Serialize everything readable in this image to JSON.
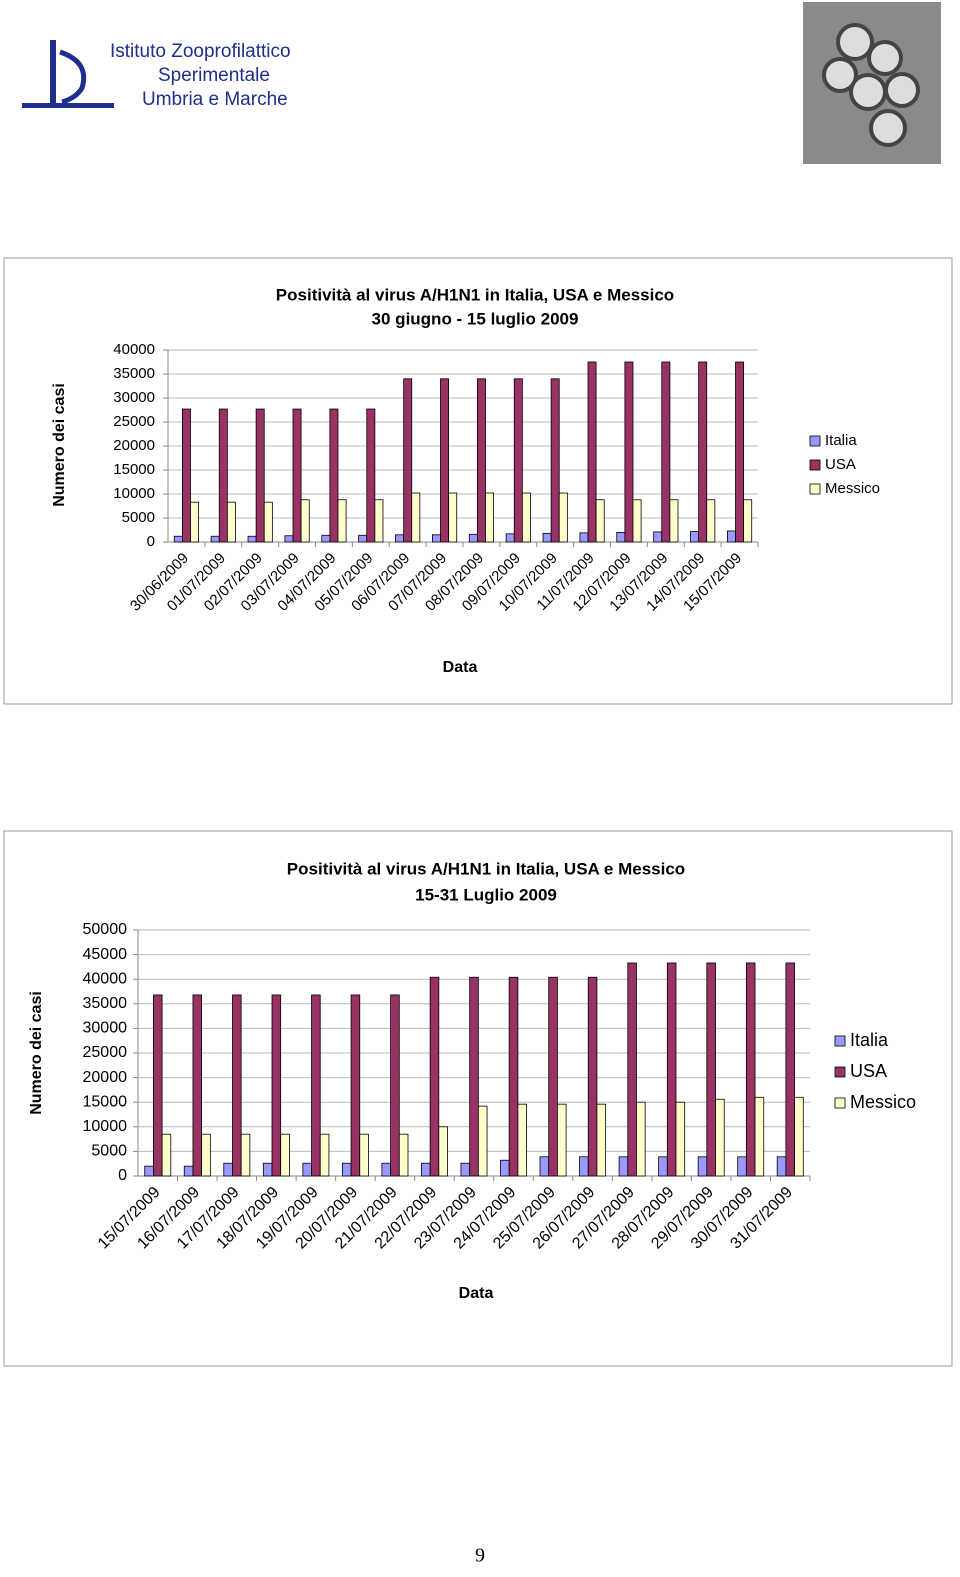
{
  "header": {
    "logo_lines": [
      "Istituto Zooprofilattico",
      "Sperimentale",
      "Umbria e Marche"
    ]
  },
  "chart_data": [
    {
      "type": "bar",
      "title": "Positività al virus A/H1N1 in Italia, USA e Messico",
      "subtitle": "30 giugno - 15 luglio 2009",
      "y_label": "Numero dei casi",
      "x_label": "Data",
      "categories": [
        "30/06/2009",
        "01/07/2009",
        "02/07/2009",
        "03/07/2009",
        "04/07/2009",
        "05/07/2009",
        "06/07/2009",
        "07/07/2009",
        "08/07/2009",
        "09/07/2009",
        "10/07/2009",
        "11/07/2009",
        "12/07/2009",
        "13/07/2009",
        "14/07/2009",
        "15/07/2009"
      ],
      "series": [
        {
          "name": "Italia",
          "color": "#9999ff",
          "values": [
            1200,
            1200,
            1200,
            1300,
            1400,
            1400,
            1500,
            1500,
            1600,
            1700,
            1800,
            1900,
            2000,
            2100,
            2200,
            2300
          ]
        },
        {
          "name": "USA",
          "color": "#993366",
          "values": [
            27700,
            27700,
            27700,
            27700,
            27700,
            27700,
            34000,
            34000,
            34000,
            34000,
            34000,
            37500,
            37500,
            37500,
            37500,
            37500
          ]
        },
        {
          "name": "Messico",
          "color": "#ffffcc",
          "values": [
            8300,
            8300,
            8300,
            8800,
            8800,
            8800,
            10200,
            10200,
            10200,
            10200,
            10200,
            8800,
            8800,
            8800,
            8800,
            8800
          ]
        }
      ],
      "ylim": [
        0,
        40000
      ],
      "yticks": [
        0,
        5000,
        10000,
        15000,
        20000,
        25000,
        30000,
        35000,
        40000
      ],
      "grid": true,
      "legend": "right"
    },
    {
      "type": "bar",
      "title": "Positività al virus A/H1N1 in Italia, USA e Messico",
      "subtitle": "15-31 Luglio 2009",
      "y_label": "Numero dei casi",
      "x_label": "Data",
      "categories": [
        "15/07/2009",
        "16/07/2009",
        "17/07/2009",
        "18/07/2009",
        "19/07/2009",
        "20/07/2009",
        "21/07/2009",
        "22/07/2009",
        "23/07/2009",
        "24/07/2009",
        "25/07/2009",
        "26/07/2009",
        "27/07/2009",
        "28/07/2009",
        "29/07/2009",
        "30/07/2009",
        "31/07/2009"
      ],
      "series": [
        {
          "name": "Italia",
          "color": "#9999ff",
          "values": [
            2000,
            2000,
            2600,
            2600,
            2600,
            2600,
            2600,
            2600,
            2600,
            3200,
            3900,
            3900,
            3900,
            3900,
            3900,
            3900,
            3900
          ]
        },
        {
          "name": "USA",
          "color": "#993366",
          "values": [
            36800,
            36800,
            36800,
            36800,
            36800,
            36800,
            36800,
            40400,
            40400,
            40400,
            40400,
            40400,
            43300,
            43300,
            43300,
            43300,
            43300
          ]
        },
        {
          "name": "Messico",
          "color": "#ffffcc",
          "values": [
            8500,
            8500,
            8500,
            8500,
            8500,
            8500,
            8500,
            10000,
            14200,
            14600,
            14600,
            14600,
            15000,
            15000,
            15600,
            16000,
            16000
          ]
        }
      ],
      "ylim": [
        0,
        50000
      ],
      "yticks": [
        0,
        5000,
        10000,
        15000,
        20000,
        25000,
        30000,
        35000,
        40000,
        45000,
        50000
      ],
      "grid": true,
      "legend": "right"
    }
  ],
  "page_number": 9
}
